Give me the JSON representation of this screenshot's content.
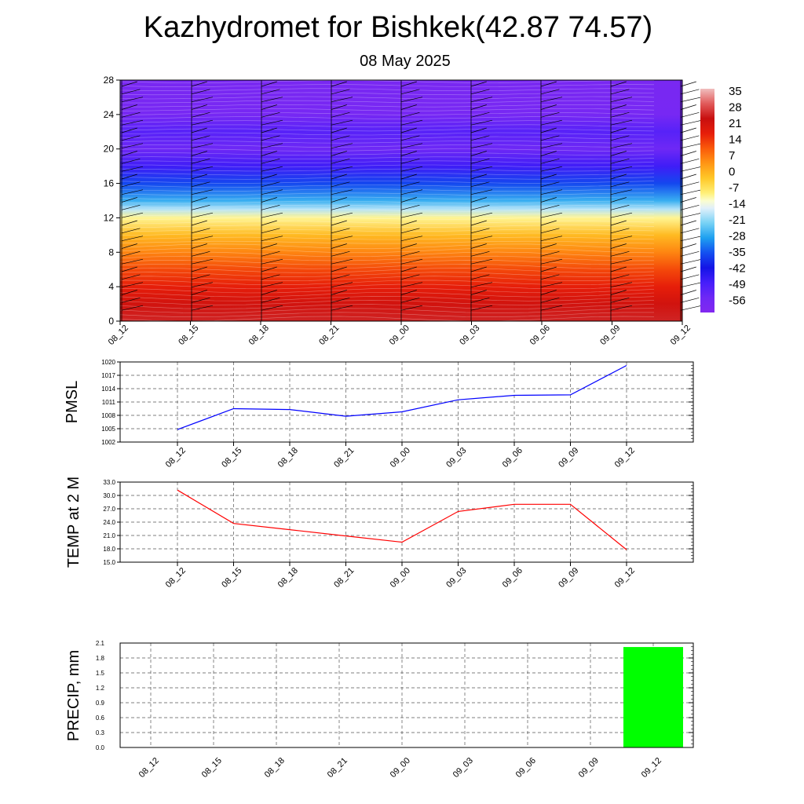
{
  "page": {
    "title": "Kazhydromet for Bishkek(42.87 74.57)",
    "subtitle": "08 May 2025"
  },
  "colors": {
    "pmsl_line": "#0000ff",
    "temp_line": "#ff0000",
    "precip_bar": "#00ff00",
    "grid": "#333333"
  },
  "chart_data": [
    {
      "type": "heatmap",
      "name": "temperature-cross-section",
      "x_ticks": [
        "08_12",
        "08_15",
        "08_18",
        "08_21",
        "09_00",
        "09_03",
        "09_06",
        "09_09",
        "09_12"
      ],
      "y_ticks": [
        "0",
        "4",
        "8",
        "12",
        "16",
        "20",
        "24",
        "28"
      ],
      "ylim": [
        0,
        28
      ],
      "colorbar_labels": [
        "35",
        "28",
        "21",
        "14",
        "7",
        "0",
        "-7",
        "-14",
        "-21",
        "-28",
        "-35",
        "-42",
        "-49",
        "-56"
      ],
      "colorbar_range": [
        -63,
        42
      ],
      "level_temperature_profile": [
        {
          "level": 0,
          "value": 30
        },
        {
          "level": 2,
          "value": 26
        },
        {
          "level": 4,
          "value": 21
        },
        {
          "level": 6,
          "value": 16
        },
        {
          "level": 8,
          "value": 9
        },
        {
          "level": 10,
          "value": 2
        },
        {
          "level": 12,
          "value": -8
        },
        {
          "level": 13,
          "value": -17
        },
        {
          "level": 14,
          "value": -26
        },
        {
          "level": 16,
          "value": -36
        },
        {
          "level": 18,
          "value": -48
        },
        {
          "level": 20,
          "value": -56
        },
        {
          "level": 22,
          "value": -52
        },
        {
          "level": 24,
          "value": -59
        },
        {
          "level": 28,
          "value": -60
        }
      ],
      "wind_barbs": "present"
    },
    {
      "type": "line",
      "name": "pmsl",
      "ylabel": "PMSL",
      "x_ticks": [
        "08_12",
        "08_15",
        "08_18",
        "08_21",
        "09_00",
        "09_03",
        "09_06",
        "09_09",
        "09_12"
      ],
      "y_ticks": [
        "1002",
        "1005",
        "1008",
        "1011",
        "1014",
        "1017",
        "1020"
      ],
      "ylim": [
        1002,
        1020
      ],
      "series": [
        {
          "values": [
            1004.8,
            1009.5,
            1009.3,
            1007.8,
            1008.8,
            1011.5,
            1012.5,
            1012.6,
            1019.2
          ]
        }
      ]
    },
    {
      "type": "line",
      "name": "temp-2m",
      "ylabel": "TEMP at 2 M",
      "x_ticks": [
        "08_12",
        "08_15",
        "08_18",
        "08_21",
        "09_00",
        "09_03",
        "09_06",
        "09_09",
        "09_12"
      ],
      "y_ticks": [
        "15.0",
        "18.0",
        "21.0",
        "24.0",
        "27.0",
        "30.0",
        "33.0"
      ],
      "ylim": [
        15,
        33
      ],
      "series": [
        {
          "values": [
            31.2,
            23.7,
            22.3,
            20.9,
            19.5,
            26.4,
            28.0,
            28.0,
            17.8
          ]
        }
      ]
    },
    {
      "type": "bar",
      "name": "precip",
      "ylabel": "PRECIP, mm",
      "categories": [
        "08_12",
        "08_15",
        "08_18",
        "08_21",
        "09_00",
        "09_03",
        "09_06",
        "09_09",
        "09_12"
      ],
      "values": [
        0,
        0,
        0,
        0,
        0,
        0,
        0,
        0,
        2.02
      ],
      "y_ticks": [
        "0.0",
        "0.3",
        "0.6",
        "0.9",
        "1.2",
        "1.5",
        "1.8",
        "2.1"
      ],
      "ylim": [
        0,
        2.1
      ]
    }
  ]
}
